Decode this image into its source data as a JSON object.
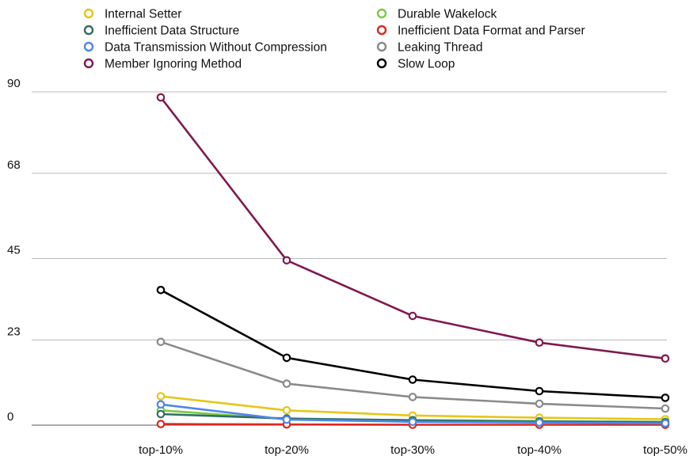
{
  "chart_data": {
    "type": "line",
    "categories": [
      "top-10%",
      "top-20%",
      "top-30%",
      "top-40%",
      "top-50%"
    ],
    "y_ticks": [
      0,
      23,
      45,
      68,
      90
    ],
    "ylim": [
      0,
      90
    ],
    "grid": true,
    "legend_position": "top",
    "series": [
      {
        "name": "Internal Setter",
        "color": "#e6c619",
        "values": [
          7.8,
          4.0,
          2.6,
          2.0,
          1.6
        ]
      },
      {
        "name": "Durable Wakelock",
        "color": "#7ac943",
        "values": [
          4.0,
          1.6,
          1.4,
          1.1,
          0.9
        ]
      },
      {
        "name": "Inefficient Data Structure",
        "color": "#2f6f62",
        "values": [
          3.0,
          1.8,
          1.3,
          1.0,
          0.8
        ]
      },
      {
        "name": "Inefficient Data Format and Parser",
        "color": "#d9281e",
        "values": [
          0.3,
          0.2,
          0.1,
          0.1,
          0.1
        ]
      },
      {
        "name": "Data Transmission Without Compression",
        "color": "#4f86e8",
        "values": [
          5.6,
          1.5,
          0.9,
          0.7,
          0.5
        ]
      },
      {
        "name": "Leaking Thread",
        "color": "#8a8a8a",
        "values": [
          22.5,
          11.2,
          7.6,
          5.8,
          4.5
        ]
      },
      {
        "name": "Member Ignoring Method",
        "color": "#80184f",
        "values": [
          88.5,
          44.5,
          29.5,
          22.3,
          18.0
        ]
      },
      {
        "name": "Slow Loop",
        "color": "#000000",
        "values": [
          36.5,
          18.2,
          12.3,
          9.2,
          7.4
        ]
      }
    ]
  }
}
